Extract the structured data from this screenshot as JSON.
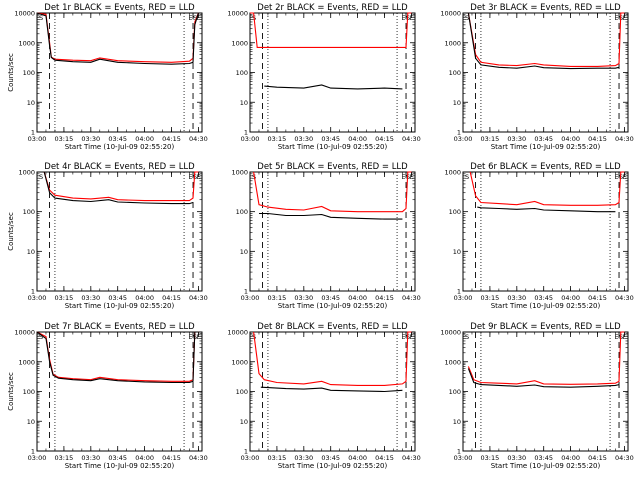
{
  "chart_data": [
    {
      "type": "line",
      "title": "Det 1r BLACK = Events, RED = LLD",
      "xlabel": "Start Time (10-Jul-09 02:55:20)",
      "ylabel": "Counts/sec",
      "yscale": "log",
      "ylim": [
        1,
        10000
      ],
      "xlim": [
        "03:00",
        "04:32"
      ],
      "x_ticks": [
        "03:00",
        "03:15",
        "03:30",
        "03:45",
        "04:00",
        "04:15",
        "04:30"
      ],
      "y_ticks": [
        "1",
        "10",
        "100",
        "1000",
        "10000"
      ],
      "markers": [
        "S",
        "E",
        "S",
        "E"
      ],
      "series": [
        {
          "name": "Events",
          "color": "#000000",
          "x": [
            "03:00",
            "03:05",
            "03:07",
            "03:08",
            "03:10",
            "03:20",
            "03:30",
            "03:35",
            "03:45",
            "04:00",
            "04:15",
            "04:25",
            "04:27",
            "04:28",
            "04:30"
          ],
          "y": [
            10000,
            8000,
            800,
            320,
            260,
            230,
            220,
            280,
            220,
            200,
            190,
            200,
            220,
            4000,
            10000
          ]
        },
        {
          "name": "LLD",
          "color": "#ff0000",
          "x": [
            "03:00",
            "03:05",
            "03:07",
            "03:08",
            "03:10",
            "03:20",
            "03:30",
            "03:35",
            "03:45",
            "04:00",
            "04:15",
            "04:25",
            "04:27",
            "04:28",
            "04:30"
          ],
          "y": [
            10000,
            9000,
            1000,
            330,
            280,
            260,
            250,
            310,
            250,
            230,
            220,
            240,
            300,
            5000,
            10000
          ]
        }
      ]
    },
    {
      "type": "line",
      "title": "Det 2r BLACK = Events, RED = LLD",
      "xlabel": "Start Time (10-Jul-09 02:55:20)",
      "ylabel": "",
      "yscale": "log",
      "ylim": [
        1,
        10000
      ],
      "xlim": [
        "03:00",
        "04:32"
      ],
      "x_ticks": [
        "03:00",
        "03:15",
        "03:30",
        "03:45",
        "04:00",
        "04:15",
        "04:30"
      ],
      "y_ticks": [
        "1",
        "10",
        "100",
        "1000",
        "10000"
      ],
      "markers": [
        "S",
        "E",
        "S",
        "E"
      ],
      "series": [
        {
          "name": "Events",
          "color": "#000000",
          "x": [
            "03:08",
            "03:15",
            "03:30",
            "03:40",
            "03:45",
            "04:00",
            "04:15",
            "04:25"
          ],
          "y": [
            35,
            32,
            30,
            38,
            30,
            28,
            30,
            28
          ]
        },
        {
          "name": "LLD",
          "color": "#ff0000",
          "x": [
            "03:00",
            "03:02",
            "03:04",
            "03:08",
            "03:30",
            "04:00",
            "04:25",
            "04:27",
            "04:28",
            "04:30"
          ],
          "y": [
            10000,
            10000,
            700,
            700,
            700,
            700,
            700,
            700,
            10000,
            10000
          ]
        }
      ]
    },
    {
      "type": "line",
      "title": "Det 3r BLACK = Events, RED = LLD",
      "xlabel": "Start Time (10-Jul-09 02:55:20)",
      "ylabel": "",
      "yscale": "log",
      "ylim": [
        1,
        10000
      ],
      "xlim": [
        "03:00",
        "04:32"
      ],
      "x_ticks": [
        "03:00",
        "03:15",
        "03:30",
        "03:45",
        "04:00",
        "04:15",
        "04:30"
      ],
      "y_ticks": [
        "1",
        "10",
        "100",
        "1000",
        "10000"
      ],
      "markers": [
        "S",
        "E",
        "S",
        "E"
      ],
      "series": [
        {
          "name": "Events",
          "color": "#000000",
          "x": [
            "03:03",
            "03:07",
            "03:10",
            "03:20",
            "03:30",
            "03:40",
            "03:45",
            "04:00",
            "04:15",
            "04:25",
            "04:27"
          ],
          "y": [
            10000,
            300,
            180,
            150,
            140,
            165,
            145,
            135,
            140,
            140,
            150
          ]
        },
        {
          "name": "LLD",
          "color": "#ff0000",
          "x": [
            "03:03",
            "03:07",
            "03:10",
            "03:20",
            "03:30",
            "03:40",
            "03:45",
            "04:00",
            "04:15",
            "04:25",
            "04:27",
            "04:28",
            "04:30"
          ],
          "y": [
            10000,
            400,
            220,
            180,
            170,
            200,
            180,
            160,
            160,
            170,
            200,
            10000,
            10000
          ]
        }
      ]
    },
    {
      "type": "line",
      "title": "Det 4r BLACK = Events, RED = LLD",
      "xlabel": "Start Time (10-Jul-09 02:55:20)",
      "ylabel": "Counts/sec",
      "yscale": "log",
      "ylim": [
        1,
        1000
      ],
      "xlim": [
        "03:00",
        "04:32"
      ],
      "x_ticks": [
        "03:00",
        "03:15",
        "03:30",
        "03:45",
        "04:00",
        "04:15",
        "04:30"
      ],
      "y_ticks": [
        "1",
        "10",
        "100",
        "1000"
      ],
      "markers": [
        "S",
        "E",
        "S",
        "E"
      ],
      "series": [
        {
          "name": "Events",
          "color": "#000000",
          "x": [
            "03:04",
            "03:07",
            "03:10",
            "03:20",
            "03:30",
            "03:40",
            "03:45",
            "04:00",
            "04:15",
            "04:25",
            "04:27"
          ],
          "y": [
            1000,
            300,
            220,
            190,
            180,
            200,
            175,
            165,
            160,
            160,
            170
          ]
        },
        {
          "name": "LLD",
          "color": "#ff0000",
          "x": [
            "03:04",
            "03:07",
            "03:10",
            "03:20",
            "03:30",
            "03:40",
            "03:45",
            "04:00",
            "04:15",
            "04:25",
            "04:27",
            "04:28",
            "04:30"
          ],
          "y": [
            1000,
            350,
            260,
            220,
            210,
            230,
            200,
            190,
            190,
            190,
            220,
            1000,
            1000
          ]
        }
      ]
    },
    {
      "type": "line",
      "title": "Det 5r BLACK = Events, RED = LLD",
      "xlabel": "Start Time (10-Jul-09 02:55:20)",
      "ylabel": "",
      "yscale": "log",
      "ylim": [
        1,
        1000
      ],
      "xlim": [
        "03:00",
        "04:32"
      ],
      "x_ticks": [
        "03:00",
        "03:15",
        "03:30",
        "03:45",
        "04:00",
        "04:15",
        "04:30"
      ],
      "y_ticks": [
        "1",
        "10",
        "100",
        "1000"
      ],
      "markers": [
        "S",
        "E",
        "S",
        "E"
      ],
      "series": [
        {
          "name": "Events",
          "color": "#000000",
          "x": [
            "03:05",
            "03:10",
            "03:20",
            "03:30",
            "03:40",
            "03:45",
            "04:00",
            "04:15",
            "04:25"
          ],
          "y": [
            90,
            90,
            80,
            80,
            85,
            72,
            68,
            65,
            65
          ]
        },
        {
          "name": "LLD",
          "color": "#ff0000",
          "x": [
            "03:02",
            "03:05",
            "03:10",
            "03:20",
            "03:30",
            "03:40",
            "03:45",
            "04:00",
            "04:15",
            "04:25",
            "04:27",
            "04:28",
            "04:30"
          ],
          "y": [
            1000,
            150,
            130,
            115,
            110,
            135,
            105,
            100,
            100,
            100,
            120,
            1000,
            1000
          ]
        }
      ]
    },
    {
      "type": "line",
      "title": "Det 6r BLACK = Events, RED = LLD",
      "xlabel": "Start Time (10-Jul-09 02:55:20)",
      "ylabel": "",
      "yscale": "log",
      "ylim": [
        1,
        1000
      ],
      "xlim": [
        "03:00",
        "04:32"
      ],
      "x_ticks": [
        "03:00",
        "03:15",
        "03:30",
        "03:45",
        "04:00",
        "04:15",
        "04:30"
      ],
      "y_ticks": [
        "1",
        "10",
        "100",
        "1000"
      ],
      "markers": [
        "S",
        "E",
        "S",
        "E"
      ],
      "series": [
        {
          "name": "Events",
          "color": "#000000",
          "x": [
            "03:08",
            "03:10",
            "03:20",
            "03:30",
            "03:40",
            "03:45",
            "04:00",
            "04:15",
            "04:25"
          ],
          "y": [
            130,
            125,
            120,
            115,
            120,
            110,
            105,
            100,
            100
          ]
        },
        {
          "name": "LLD",
          "color": "#ff0000",
          "x": [
            "03:04",
            "03:07",
            "03:10",
            "03:20",
            "03:30",
            "03:40",
            "03:45",
            "04:00",
            "04:15",
            "04:25",
            "04:27",
            "04:28",
            "04:30"
          ],
          "y": [
            1000,
            250,
            170,
            160,
            150,
            180,
            150,
            145,
            145,
            150,
            170,
            1000,
            1000
          ]
        }
      ]
    },
    {
      "type": "line",
      "title": "Det 7r BLACK = Events, RED = LLD",
      "xlabel": "Start Time (10-Jul-09 02:55:20)",
      "ylabel": "Counts/sec",
      "yscale": "log",
      "ylim": [
        1,
        10000
      ],
      "xlim": [
        "03:00",
        "04:32"
      ],
      "x_ticks": [
        "03:00",
        "03:15",
        "03:30",
        "03:45",
        "04:00",
        "04:15",
        "04:30"
      ],
      "y_ticks": [
        "1",
        "10",
        "100",
        "1000",
        "10000"
      ],
      "markers": [
        "S",
        "E",
        "S",
        "E"
      ],
      "series": [
        {
          "name": "Events",
          "color": "#000000",
          "x": [
            "03:00",
            "03:05",
            "03:07",
            "03:09",
            "03:12",
            "03:20",
            "03:30",
            "03:35",
            "03:45",
            "04:00",
            "04:15",
            "04:25",
            "04:27",
            "04:28",
            "04:30"
          ],
          "y": [
            10000,
            6000,
            1000,
            350,
            280,
            250,
            230,
            270,
            230,
            210,
            200,
            200,
            220,
            10000,
            10000
          ]
        },
        {
          "name": "LLD",
          "color": "#ff0000",
          "x": [
            "03:00",
            "03:05",
            "03:07",
            "03:09",
            "03:12",
            "03:20",
            "03:30",
            "03:35",
            "03:45",
            "04:00",
            "04:15",
            "04:25",
            "04:27",
            "04:28",
            "04:30"
          ],
          "y": [
            10000,
            7000,
            1200,
            380,
            300,
            270,
            250,
            300,
            250,
            230,
            220,
            220,
            250,
            10000,
            10000
          ]
        }
      ]
    },
    {
      "type": "line",
      "title": "Det 8r BLACK = Events, RED = LLD",
      "xlabel": "Start Time (10-Jul-09 02:55:20)",
      "ylabel": "",
      "yscale": "log",
      "ylim": [
        1,
        10000
      ],
      "xlim": [
        "03:00",
        "04:32"
      ],
      "x_ticks": [
        "03:00",
        "03:15",
        "03:30",
        "03:45",
        "04:00",
        "04:15",
        "04:30"
      ],
      "y_ticks": [
        "1",
        "10",
        "100",
        "1000",
        "10000"
      ],
      "markers": [
        "S",
        "E",
        "S",
        "E"
      ],
      "series": [
        {
          "name": "Events",
          "color": "#000000",
          "x": [
            "03:06",
            "03:10",
            "03:20",
            "03:30",
            "03:40",
            "03:45",
            "04:00",
            "04:15",
            "04:25"
          ],
          "y": [
            140,
            135,
            125,
            120,
            130,
            110,
            105,
            100,
            110
          ]
        },
        {
          "name": "LLD",
          "color": "#ff0000",
          "x": [
            "03:02",
            "03:05",
            "03:08",
            "03:15",
            "03:30",
            "03:40",
            "03:45",
            "04:00",
            "04:15",
            "04:25",
            "04:27",
            "04:28",
            "04:30"
          ],
          "y": [
            10000,
            400,
            250,
            200,
            180,
            220,
            170,
            160,
            160,
            180,
            220,
            10000,
            10000
          ]
        }
      ]
    },
    {
      "type": "line",
      "title": "Det 9r BLACK = Events, RED = LLD",
      "xlabel": "Start Time (10-Jul-09 02:55:20)",
      "ylabel": "",
      "yscale": "log",
      "ylim": [
        1,
        10000
      ],
      "xlim": [
        "03:00",
        "04:32"
      ],
      "x_ticks": [
        "03:00",
        "03:15",
        "03:30",
        "03:45",
        "04:00",
        "04:15",
        "04:30"
      ],
      "y_ticks": [
        "1",
        "10",
        "100",
        "1000",
        "10000"
      ],
      "markers": [
        "S",
        "E",
        "S",
        "E"
      ],
      "series": [
        {
          "name": "Events",
          "color": "#000000",
          "x": [
            "03:03",
            "03:06",
            "03:10",
            "03:20",
            "03:30",
            "03:40",
            "03:45",
            "04:00",
            "04:15",
            "04:25",
            "04:27"
          ],
          "y": [
            600,
            200,
            170,
            160,
            150,
            165,
            145,
            140,
            150,
            160,
            170
          ]
        },
        {
          "name": "LLD",
          "color": "#ff0000",
          "x": [
            "03:03",
            "03:06",
            "03:10",
            "03:20",
            "03:30",
            "03:40",
            "03:45",
            "04:00",
            "04:15",
            "04:25",
            "04:27",
            "04:28",
            "04:30"
          ],
          "y": [
            700,
            250,
            200,
            190,
            180,
            230,
            180,
            175,
            180,
            190,
            220,
            10000,
            10000
          ]
        }
      ]
    }
  ]
}
